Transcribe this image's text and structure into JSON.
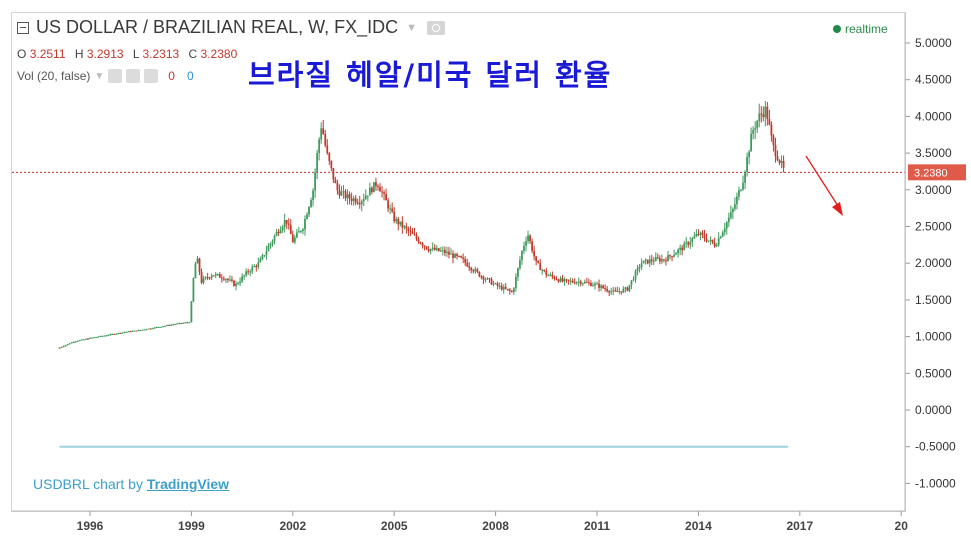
{
  "header": {
    "title": "US DOLLAR / BRAZILIAN REAL, W, FX_IDC",
    "ohlc": {
      "o_label": "O",
      "o": "3.2511",
      "h_label": "H",
      "h": "3.2913",
      "l_label": "L",
      "l": "3.2313",
      "c_label": "C",
      "c": "3.2380"
    },
    "volume": {
      "label": "Vol (20, false)",
      "val_a": "0",
      "val_b": "0"
    },
    "realtime": "realtime"
  },
  "overlay_text": "브라질 헤알/미국 달러  환율",
  "credit": {
    "prefix": "USDBRL chart by ",
    "brand": "TradingView"
  },
  "last_price_badge": "3.2380",
  "colors": {
    "up": "#3f9a5e",
    "down": "#c0392b",
    "price_line": "#cf2a2a",
    "badge": "#e05a4a",
    "arrow": "#e0201c",
    "zero_line": "#9fd3dc",
    "overlay": "#1a1ad6"
  },
  "chart_data": {
    "type": "line",
    "title": "US DOLLAR / BRAZILIAN REAL, W, FX_IDC",
    "x_tick_labels": [
      "1996",
      "1999",
      "2002",
      "2005",
      "2008",
      "2011",
      "2014",
      "2017",
      "20"
    ],
    "y_tick_labels": [
      "5.0000",
      "4.5000",
      "4.0000",
      "3.5000",
      "3.0000",
      "2.5000",
      "2.0000",
      "1.5000",
      "1.0000",
      "0.5000",
      "0.0000",
      "-0.5000",
      "-1.0000"
    ],
    "ylim": [
      -1.3,
      5.3
    ],
    "series": [
      {
        "x": [
          1995.1,
          1995.5,
          1996.0,
          1996.5,
          1997.0,
          1997.5,
          1998.0,
          1998.5,
          1998.95,
          1999.05,
          1999.15,
          1999.3,
          1999.6,
          2000.0,
          2000.3,
          2000.7,
          2001.0,
          2001.5,
          2001.8,
          2002.0,
          2002.3,
          2002.6,
          2002.75,
          2002.85,
          2003.0,
          2003.3,
          2003.6,
          2004.0,
          2004.3,
          2004.5,
          2004.8,
          2005.0,
          2005.5,
          2006.0,
          2006.5,
          2007.0,
          2007.5,
          2008.0,
          2008.5,
          2008.8,
          2008.95,
          2009.2,
          2009.5,
          2010.0,
          2010.5,
          2011.0,
          2011.5,
          2011.9,
          2012.3,
          2012.7,
          2013.0,
          2013.5,
          2014.0,
          2014.5,
          2015.0,
          2015.3,
          2015.6,
          2015.8,
          2016.0,
          2016.2,
          2016.4,
          2016.55
        ],
        "y": [
          0.85,
          0.93,
          0.98,
          1.02,
          1.06,
          1.09,
          1.13,
          1.17,
          1.2,
          1.75,
          2.1,
          1.75,
          1.85,
          1.8,
          1.7,
          1.9,
          2.0,
          2.4,
          2.6,
          2.3,
          2.5,
          3.0,
          3.6,
          3.9,
          3.5,
          3.0,
          2.9,
          2.85,
          3.0,
          3.1,
          2.8,
          2.6,
          2.4,
          2.2,
          2.15,
          2.05,
          1.85,
          1.7,
          1.6,
          2.2,
          2.4,
          2.0,
          1.85,
          1.75,
          1.75,
          1.7,
          1.6,
          1.65,
          2.0,
          2.05,
          2.05,
          2.2,
          2.4,
          2.25,
          2.7,
          3.1,
          3.8,
          4.0,
          4.1,
          3.6,
          3.4,
          3.24
        ]
      }
    ]
  }
}
